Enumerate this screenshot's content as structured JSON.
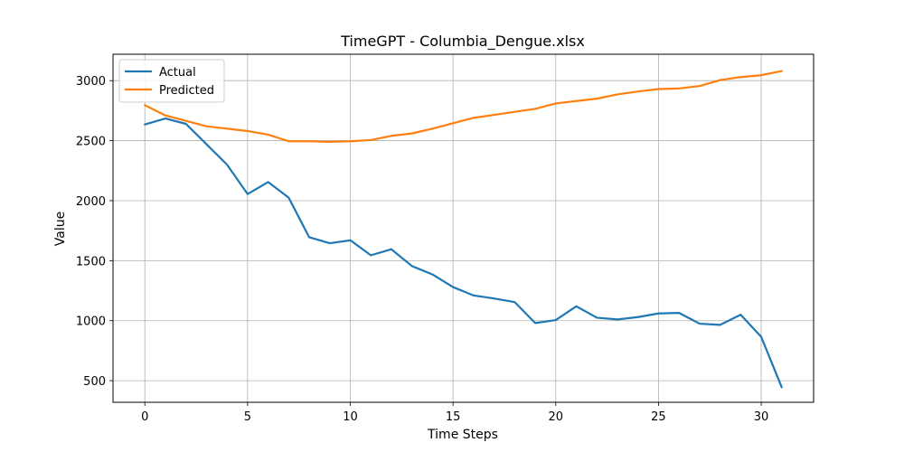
{
  "chart_data": {
    "type": "line",
    "title": "TimeGPT - Columbia_Dengue.xlsx",
    "xlabel": "Time Steps",
    "ylabel": "Value",
    "xlim": [
      -1.55,
      32.55
    ],
    "ylim": [
      320,
      3220
    ],
    "xticks": [
      0,
      5,
      10,
      15,
      20,
      25,
      30
    ],
    "yticks": [
      500,
      1000,
      1500,
      2000,
      2500,
      3000
    ],
    "grid": true,
    "legend_position": "top-left",
    "x": [
      0,
      1,
      2,
      3,
      4,
      5,
      6,
      7,
      8,
      9,
      10,
      11,
      12,
      13,
      14,
      15,
      16,
      17,
      18,
      19,
      20,
      21,
      22,
      23,
      24,
      25,
      26,
      27,
      28,
      29,
      30,
      31
    ],
    "series": [
      {
        "name": "Actual",
        "color": "#1f77b4",
        "values": [
          2635,
          2685,
          2640,
          2470,
          2300,
          2055,
          2155,
          2025,
          1695,
          1645,
          1670,
          1545,
          1595,
          1455,
          1385,
          1280,
          1210,
          1185,
          1155,
          980,
          1005,
          1120,
          1025,
          1010,
          1030,
          1060,
          1065,
          975,
          965,
          1050,
          865,
          445
        ]
      },
      {
        "name": "Predicted",
        "color": "#ff7f0e",
        "values": [
          2795,
          2710,
          2665,
          2620,
          2600,
          2580,
          2550,
          2495,
          2495,
          2490,
          2495,
          2505,
          2540,
          2560,
          2600,
          2645,
          2690,
          2715,
          2740,
          2765,
          2810,
          2830,
          2850,
          2885,
          2910,
          2930,
          2935,
          2955,
          3005,
          3030,
          3045,
          3080
        ]
      }
    ]
  }
}
